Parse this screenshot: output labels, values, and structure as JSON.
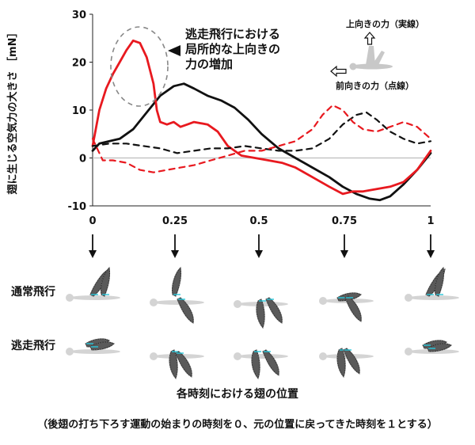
{
  "chart_data": {
    "type": "line",
    "ylabel": "翅に生じる空気力の大きさ ［mN］",
    "xlabel": "各時刻における翅の位置",
    "note": "（後翅の打ち下ろす運動の始まりの時刻を０、元の位置に戻ってきた時刻を１とする）",
    "xlim": [
      0,
      1
    ],
    "ylim": [
      -10,
      30
    ],
    "x_ticks": [
      "0",
      "0.25",
      "0.5",
      "0.75",
      "1"
    ],
    "x_tick_values": [
      0,
      0.25,
      0.5,
      0.75,
      1
    ],
    "y_ticks": [
      "30",
      "20",
      "10",
      "0",
      "-10"
    ],
    "y_tick_values": [
      30,
      20,
      10,
      0,
      -10
    ],
    "annotation": [
      "逃走飛行における",
      "局所的な上向きの",
      "力の増加"
    ],
    "legend": {
      "upward": "上向きの力（実線）",
      "forward": "前向きの力（点線）"
    },
    "row_labels": [
      "通常飛行",
      "逃走飛行"
    ],
    "colors": {
      "normal": "#111111",
      "escape": "#e8191f",
      "zero_line": "#bdbdbd",
      "wing_vein": "#26c6da"
    },
    "series": [
      {
        "name": "通常飛行 上向きの力（実線）",
        "color": "black",
        "dash": false,
        "x": [
          0,
          0.02,
          0.05,
          0.08,
          0.12,
          0.16,
          0.2,
          0.24,
          0.27,
          0.3,
          0.34,
          0.38,
          0.42,
          0.46,
          0.5,
          0.55,
          0.6,
          0.65,
          0.7,
          0.74,
          0.78,
          0.82,
          0.85,
          0.88,
          0.92,
          0.96,
          1.0
        ],
        "values": [
          1.5,
          3.0,
          3.5,
          4.0,
          6.0,
          9.5,
          13.0,
          15.0,
          15.5,
          14.5,
          13.0,
          12.0,
          10.5,
          8.0,
          5.0,
          2.0,
          0.0,
          -2.0,
          -4.0,
          -6.0,
          -7.5,
          -8.5,
          -8.8,
          -8.0,
          -5.5,
          -2.5,
          1.0
        ]
      },
      {
        "name": "逃走飛行 上向きの力（実線）",
        "color": "red",
        "dash": false,
        "x": [
          0,
          0.02,
          0.04,
          0.06,
          0.08,
          0.1,
          0.12,
          0.14,
          0.16,
          0.18,
          0.19,
          0.2,
          0.22,
          0.24,
          0.26,
          0.28,
          0.3,
          0.34,
          0.37,
          0.4,
          0.44,
          0.48,
          0.52,
          0.56,
          0.6,
          0.65,
          0.7,
          0.74,
          0.77,
          0.8,
          0.84,
          0.88,
          0.92,
          0.96,
          1.0
        ],
        "values": [
          2.5,
          10.0,
          14.5,
          17.5,
          20.0,
          22.5,
          24.5,
          24.0,
          21.0,
          15.5,
          10.0,
          7.5,
          7.0,
          7.5,
          6.5,
          7.0,
          7.5,
          7.0,
          5.5,
          2.5,
          0.5,
          0.0,
          -0.5,
          -1.0,
          -2.0,
          -4.0,
          -6.0,
          -7.5,
          -7.0,
          -7.0,
          -6.5,
          -6.0,
          -5.0,
          -2.5,
          1.5
        ]
      },
      {
        "name": "通常飛行 前向きの力（点線）",
        "color": "black",
        "dash": true,
        "x": [
          0,
          0.05,
          0.1,
          0.15,
          0.2,
          0.25,
          0.3,
          0.35,
          0.4,
          0.45,
          0.5,
          0.55,
          0.6,
          0.65,
          0.7,
          0.74,
          0.78,
          0.81,
          0.84,
          0.88,
          0.92,
          0.96,
          1.0
        ],
        "values": [
          2.5,
          3.0,
          3.0,
          2.5,
          2.0,
          1.0,
          1.5,
          2.0,
          2.0,
          2.5,
          2.0,
          1.5,
          1.5,
          2.0,
          4.0,
          7.0,
          9.0,
          9.5,
          8.0,
          5.5,
          4.0,
          3.0,
          3.5
        ]
      },
      {
        "name": "逃走飛行 前向きの力（点線）",
        "color": "red",
        "dash": true,
        "x": [
          0,
          0.03,
          0.06,
          0.1,
          0.14,
          0.18,
          0.22,
          0.26,
          0.3,
          0.35,
          0.4,
          0.45,
          0.5,
          0.55,
          0.6,
          0.65,
          0.68,
          0.71,
          0.74,
          0.77,
          0.8,
          0.84,
          0.88,
          0.92,
          0.96,
          1.0
        ],
        "values": [
          4.0,
          -0.5,
          -0.5,
          -1.0,
          -2.5,
          -3.0,
          -2.5,
          -2.0,
          -1.5,
          -0.5,
          0.5,
          1.5,
          1.5,
          2.5,
          3.5,
          6.0,
          9.0,
          11.0,
          10.0,
          7.5,
          6.0,
          5.5,
          6.5,
          7.5,
          6.5,
          4.0
        ]
      }
    ]
  }
}
